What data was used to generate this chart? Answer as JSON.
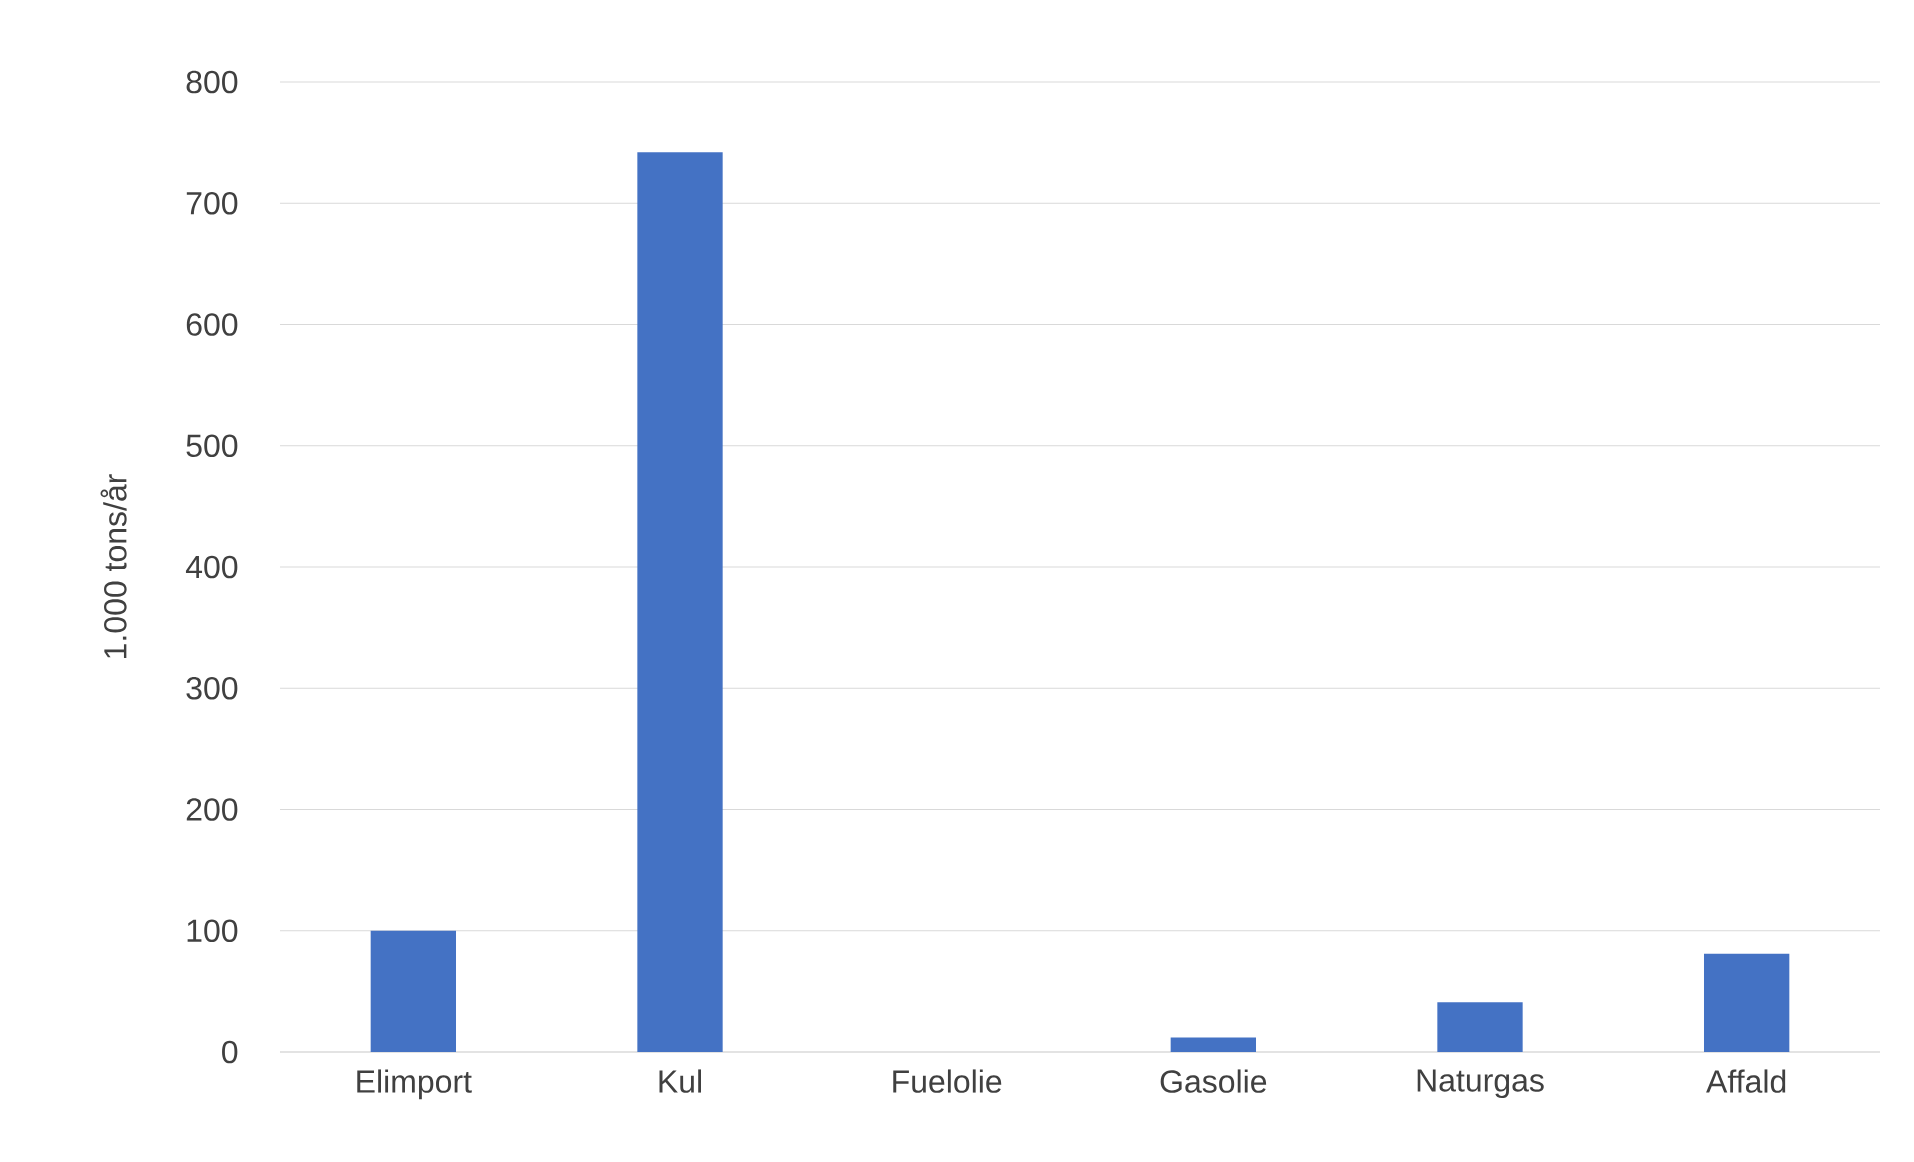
{
  "chart_data": {
    "type": "bar",
    "ylabel": "1.000 tons/år",
    "categories": [
      "Elimport",
      "Kul",
      "Fuelolie",
      "Gasolie",
      "Naturgas",
      "Affald"
    ],
    "values": [
      100,
      742,
      0,
      12,
      41,
      81
    ],
    "color": "#4472c4",
    "ylim": [
      0,
      800
    ],
    "yticks": [
      0,
      100,
      200,
      300,
      400,
      500,
      600,
      700,
      800
    ],
    "grid": "y"
  }
}
